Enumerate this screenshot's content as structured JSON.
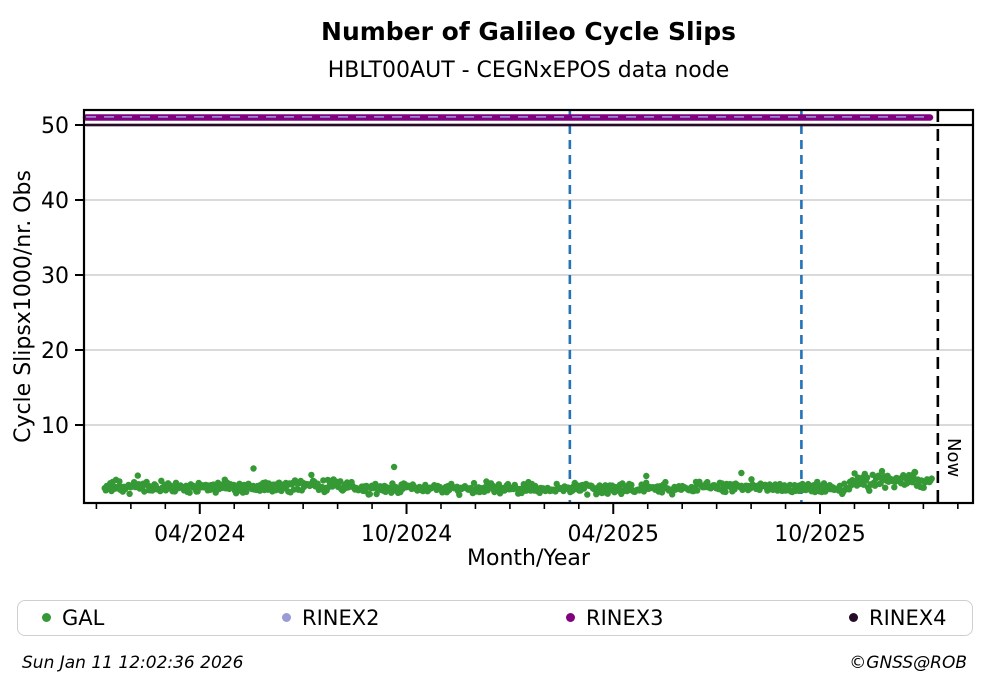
{
  "page": {
    "title": "Number of Galileo Cycle Slips",
    "subtitle": "HBLT00AUT - CEGNxEPOS data node",
    "footer_left": "Sun Jan 11 12:02:36 2026",
    "footer_right": "©GNSS@ROB"
  },
  "legend": {
    "items": [
      {
        "label": "GAL",
        "color": "#359935"
      },
      {
        "label": "RINEX2",
        "color": "#9a9ad6"
      },
      {
        "label": "RINEX3",
        "color": "#800080"
      },
      {
        "label": "RINEX4",
        "color": "#260b26"
      }
    ]
  },
  "chart_data": {
    "type": "scatter",
    "title": "Number of Galileo Cycle Slips",
    "subtitle": "HBLT00AUT - CEGNxEPOS data node",
    "xlabel": "Month/Year",
    "ylabel": "Cycle Slipsx1000/nr. Obs",
    "xlim": [
      2023.97,
      2026.12
    ],
    "ylim": [
      -0.4,
      52
    ],
    "yticks": [
      10,
      20,
      30,
      40,
      50
    ],
    "xticks": [
      {
        "value": 2024.25,
        "label": "04/2024"
      },
      {
        "value": 2024.75,
        "label": "10/2024"
      },
      {
        "value": 2025.25,
        "label": "04/2025"
      },
      {
        "value": 2025.75,
        "label": "10/2025"
      }
    ],
    "minor_xticks": "monthly",
    "grid": {
      "color": "#c3c3c3",
      "gridded_yticks": [
        10,
        20,
        30,
        40
      ]
    },
    "max_line": {
      "y": 50,
      "color": "#000000"
    },
    "event_lines": [
      {
        "x": 2025.145,
        "color": "#2273b8",
        "style": "dashed"
      },
      {
        "x": 2025.705,
        "color": "#2273b8",
        "style": "dashed"
      }
    ],
    "now_line": {
      "x": 2026.035,
      "label": "Now",
      "color": "#000000",
      "style": "dashed"
    },
    "series": [
      {
        "name": "GAL",
        "type": "scatter-daily",
        "color": "#359935",
        "marker_radius": 3.2,
        "x_start": 2024.02,
        "x_end": 2026.02,
        "step_days": 1,
        "clip_min": 0.45,
        "clip_max": 4.45,
        "segments": [
          {
            "from": 2024.02,
            "to": 2024.45,
            "mean": 1.75,
            "sd": 0.38
          },
          {
            "from": 2024.45,
            "to": 2024.62,
            "mean": 1.95,
            "sd": 0.42
          },
          {
            "from": 2024.62,
            "to": 2025.05,
            "mean": 1.55,
            "sd": 0.35
          },
          {
            "from": 2025.05,
            "to": 2025.45,
            "mean": 1.55,
            "sd": 0.33
          },
          {
            "from": 2025.45,
            "to": 2025.63,
            "mean": 1.8,
            "sd": 0.4
          },
          {
            "from": 2025.63,
            "to": 2025.82,
            "mean": 1.65,
            "sd": 0.38
          },
          {
            "from": 2025.82,
            "to": 2026.02,
            "mean": 2.55,
            "sd": 0.5
          }
        ],
        "outliers": [
          [
            2024.1,
            3.25
          ],
          [
            2024.38,
            4.2
          ],
          [
            2024.52,
            3.35
          ],
          [
            2024.72,
            4.4
          ],
          [
            2025.33,
            3.2
          ],
          [
            2025.56,
            3.6
          ],
          [
            2025.9,
            3.85
          ],
          [
            2025.98,
            3.7
          ]
        ]
      },
      {
        "name": "RINEX3",
        "type": "hline-thick",
        "color": "#800080",
        "y": 51.0,
        "x_start": 2023.975,
        "x_end": 2026.016,
        "width": 6.5
      },
      {
        "name": "RINEX2",
        "type": "hline-dashed",
        "color": "#9a9ad6",
        "y": 51.08,
        "x_start": 2023.975,
        "x_end": 2026.016,
        "width": 1.8
      },
      {
        "name": "RINEX4",
        "type": "hline",
        "color": "#260b26",
        "y": 50.0,
        "x_start": 2023.975,
        "x_end": 2026.016,
        "width": 2.6
      }
    ]
  }
}
